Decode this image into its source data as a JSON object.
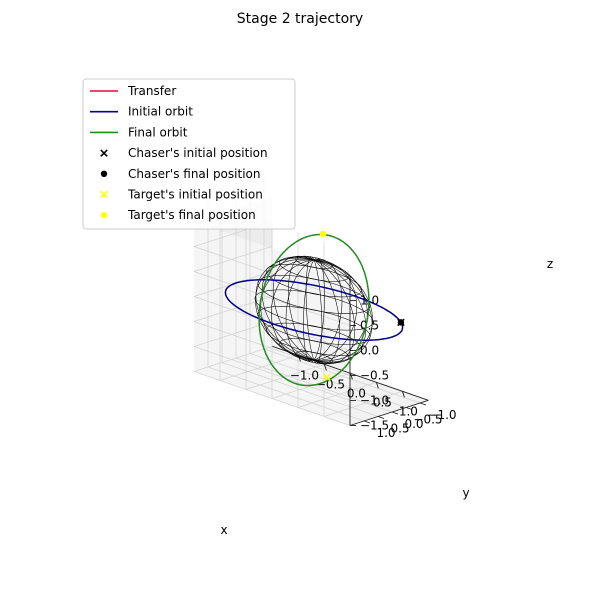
{
  "chart_data": {
    "type": "line3d",
    "title": "Stage 2 trajectory",
    "xlabel": "x",
    "ylabel": "y",
    "zlabel": "z",
    "xlim": [
      -1.5,
      1.5
    ],
    "ylim": [
      -1.3,
      1.5
    ],
    "zlim": [
      -1.5,
      1.5
    ],
    "x_ticks": [
      "−1.0",
      "−0.5",
      "0.0",
      "0.5",
      "1.0"
    ],
    "x_tick_values": [
      -1.0,
      -0.5,
      0.0,
      0.5,
      1.0
    ],
    "y_ticks": [
      "−1.0",
      "−0.5",
      "0.0",
      "0.5",
      "1.0"
    ],
    "y_tick_values": [
      -1.0,
      -0.5,
      0.0,
      0.5,
      1.0
    ],
    "z_ticks": [
      "−1.5",
      "−1.0",
      "−0.5",
      "0.0",
      "0.5",
      "1.0"
    ],
    "z_tick_values": [
      -1.5,
      -1.0,
      -0.5,
      0.0,
      0.5,
      1.0
    ],
    "grid": true,
    "legend_position": "upper-left",
    "sphere": {
      "radius": 1.0,
      "color": "#000000"
    },
    "series": [
      {
        "name": "Transfer",
        "kind": "line",
        "color": "#dc143c",
        "points": []
      },
      {
        "name": "Initial orbit",
        "kind": "line",
        "color": "#00008b",
        "orbit": {
          "radius": 1.5,
          "inclination_deg": 0
        }
      },
      {
        "name": "Final orbit",
        "kind": "line",
        "color": "#228b22",
        "orbit": {
          "radius": 1.5,
          "inclination_deg": 90,
          "raan_deg": 100
        }
      },
      {
        "name": "Chaser's initial position",
        "kind": "marker",
        "marker": "x",
        "color": "#000000",
        "point": [
          1.16,
          -0.95,
          0
        ]
      },
      {
        "name": "Chaser's final position",
        "kind": "marker",
        "marker": "o",
        "color": "#000000",
        "point": [
          1.16,
          -0.95,
          0
        ]
      },
      {
        "name": "Target's initial position",
        "kind": "marker",
        "marker": "x",
        "color": "#ffff00",
        "point": [
          0.0,
          -0.46,
          -1.43
        ]
      },
      {
        "name": "Target's final position",
        "kind": "marker",
        "marker": "o",
        "color": "#ffff00",
        "point": [
          0.0,
          -0.32,
          1.46
        ]
      }
    ]
  }
}
